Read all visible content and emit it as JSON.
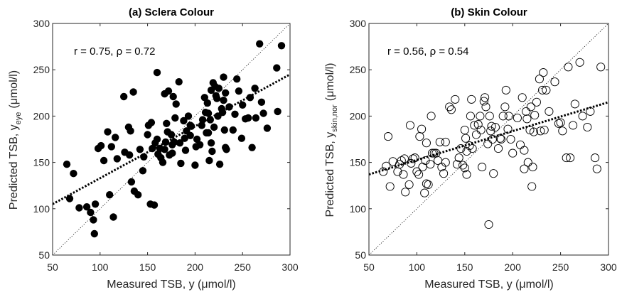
{
  "chart_data": [
    {
      "type": "scatter",
      "panel_id": "a",
      "title": "(a) Sclera Colour",
      "xlabel": "Measured TSB, y (μmol/l)",
      "ylabel_main": "Predicted TSB, y",
      "ylabel_sub": "eye",
      "ylabel_unit": "(μmol/l)",
      "annotation": "r = 0.75, ρ = 0.72",
      "xlim": [
        50,
        300
      ],
      "ylim": [
        50,
        300
      ],
      "xticks": [
        50,
        100,
        150,
        200,
        250,
        300
      ],
      "yticks": [
        50,
        100,
        150,
        200,
        250,
        300
      ],
      "marker": "filled",
      "fit_line": {
        "x": [
          50,
          300
        ],
        "y": [
          105,
          245
        ]
      },
      "identity_line": true,
      "points": [
        [
          65,
          148
        ],
        [
          68,
          111
        ],
        [
          72,
          138
        ],
        [
          78,
          101
        ],
        [
          86,
          102
        ],
        [
          90,
          96
        ],
        [
          93,
          88
        ],
        [
          94,
          73
        ],
        [
          95,
          105
        ],
        [
          98,
          165
        ],
        [
          101,
          168
        ],
        [
          104,
          152
        ],
        [
          108,
          183
        ],
        [
          110,
          115
        ],
        [
          112,
          167
        ],
        [
          114,
          91
        ],
        [
          116,
          177
        ],
        [
          118,
          154
        ],
        [
          125,
          221
        ],
        [
          126,
          161
        ],
        [
          130,
          188
        ],
        [
          131,
          158
        ],
        [
          132,
          184
        ],
        [
          133,
          129
        ],
        [
          135,
          226
        ],
        [
          136,
          119
        ],
        [
          140,
          115
        ],
        [
          142,
          164
        ],
        [
          145,
          141
        ],
        [
          146,
          156
        ],
        [
          150,
          180
        ],
        [
          151,
          190
        ],
        [
          153,
          105
        ],
        [
          154,
          193
        ],
        [
          155,
          165
        ],
        [
          157,
          104
        ],
        [
          158,
          171
        ],
        [
          160,
          175
        ],
        [
          160,
          247
        ],
        [
          161,
          159
        ],
        [
          163,
          165
        ],
        [
          164,
          155
        ],
        [
          166,
          150
        ],
        [
          168,
          224
        ],
        [
          168,
          164
        ],
        [
          169,
          172
        ],
        [
          170,
          192
        ],
        [
          171,
          183
        ],
        [
          172,
          227
        ],
        [
          173,
          158
        ],
        [
          175,
          180
        ],
        [
          176,
          169
        ],
        [
          176,
          160
        ],
        [
          177,
          221
        ],
        [
          178,
          172
        ],
        [
          179,
          198
        ],
        [
          180,
          213
        ],
        [
          183,
          237
        ],
        [
          184,
          171
        ],
        [
          185,
          149
        ],
        [
          188,
          195
        ],
        [
          189,
          176
        ],
        [
          190,
          163
        ],
        [
          191,
          184
        ],
        [
          193,
          200
        ],
        [
          195,
          190
        ],
        [
          195,
          179
        ],
        [
          196,
          189
        ],
        [
          200,
          147
        ],
        [
          201,
          167
        ],
        [
          202,
          175
        ],
        [
          205,
          169
        ],
        [
          207,
          190
        ],
        [
          208,
          196
        ],
        [
          210,
          220
        ],
        [
          211,
          204
        ],
        [
          212,
          182
        ],
        [
          213,
          214
        ],
        [
          214,
          203
        ],
        [
          214,
          182
        ],
        [
          215,
          152
        ],
        [
          216,
          196
        ],
        [
          217,
          228
        ],
        [
          217,
          171
        ],
        [
          218,
          162
        ],
        [
          219,
          236
        ],
        [
          220,
          188
        ],
        [
          221,
          232
        ],
        [
          222,
          222
        ],
        [
          223,
          219
        ],
        [
          224,
          200
        ],
        [
          225,
          230
        ],
        [
          226,
          148
        ],
        [
          228,
          208
        ],
        [
          229,
          204
        ],
        [
          230,
          217
        ],
        [
          230,
          242
        ],
        [
          231,
          185
        ],
        [
          232,
          225
        ],
        [
          232,
          166
        ],
        [
          233,
          164
        ],
        [
          236,
          210
        ],
        [
          240,
          185
        ],
        [
          242,
          202
        ],
        [
          244,
          240
        ],
        [
          246,
          227
        ],
        [
          249,
          176
        ],
        [
          250,
          212
        ],
        [
          253,
          197
        ],
        [
          256,
          198
        ],
        [
          258,
          220
        ],
        [
          260,
          166
        ],
        [
          263,
          230
        ],
        [
          264,
          198
        ],
        [
          268,
          278
        ],
        [
          270,
          215
        ],
        [
          272,
          203
        ],
        [
          276,
          187
        ],
        [
          286,
          252
        ],
        [
          287,
          205
        ],
        [
          291,
          276
        ]
      ]
    },
    {
      "type": "scatter",
      "panel_id": "b",
      "title": "(b) Skin Colour",
      "xlabel": "Measured TSB, y (μmol/l)",
      "ylabel_main": "Predicted TSB, y",
      "ylabel_sub": "skin,nor",
      "ylabel_unit": "(μmol/l)",
      "annotation": "r = 0.56, ρ = 0.54",
      "xlim": [
        50,
        300
      ],
      "ylim": [
        50,
        300
      ],
      "xticks": [
        50,
        100,
        150,
        200,
        250,
        300
      ],
      "yticks": [
        50,
        100,
        150,
        200,
        250,
        300
      ],
      "marker": "open",
      "fit_line": {
        "x": [
          50,
          300
        ],
        "y": [
          137,
          215
        ]
      },
      "identity_line": true,
      "points": [
        [
          65,
          140
        ],
        [
          68,
          146
        ],
        [
          70,
          178
        ],
        [
          72,
          124
        ],
        [
          75,
          151
        ],
        [
          80,
          140
        ],
        [
          82,
          148
        ],
        [
          84,
          152
        ],
        [
          86,
          137
        ],
        [
          87,
          154
        ],
        [
          88,
          118
        ],
        [
          92,
          126
        ],
        [
          93,
          190
        ],
        [
          94,
          149
        ],
        [
          96,
          154
        ],
        [
          98,
          155
        ],
        [
          100,
          140
        ],
        [
          102,
          137
        ],
        [
          103,
          178
        ],
        [
          105,
          186
        ],
        [
          106,
          145
        ],
        [
          108,
          117
        ],
        [
          109,
          152
        ],
        [
          110,
          127
        ],
        [
          110,
          171
        ],
        [
          112,
          126
        ],
        [
          114,
          148
        ],
        [
          115,
          200
        ],
        [
          116,
          160
        ],
        [
          118,
          160
        ],
        [
          120,
          160
        ],
        [
          122,
          152
        ],
        [
          124,
          172
        ],
        [
          126,
          145
        ],
        [
          128,
          138
        ],
        [
          130,
          172
        ],
        [
          130,
          150
        ],
        [
          134,
          210
        ],
        [
          136,
          207
        ],
        [
          140,
          218
        ],
        [
          142,
          148
        ],
        [
          144,
          155
        ],
        [
          146,
          165
        ],
        [
          148,
          147
        ],
        [
          150,
          144
        ],
        [
          150,
          185
        ],
        [
          151,
          176
        ],
        [
          152,
          137
        ],
        [
          152,
          162
        ],
        [
          155,
          168
        ],
        [
          156,
          200
        ],
        [
          157,
          218
        ],
        [
          158,
          165
        ],
        [
          160,
          190
        ],
        [
          162,
          180
        ],
        [
          164,
          191
        ],
        [
          166,
          200
        ],
        [
          167,
          185
        ],
        [
          168,
          145
        ],
        [
          170,
          216
        ],
        [
          171,
          220
        ],
        [
          172,
          210
        ],
        [
          174,
          170
        ],
        [
          175,
          83
        ],
        [
          176,
          200
        ],
        [
          177,
          184
        ],
        [
          178,
          189
        ],
        [
          179,
          175
        ],
        [
          180,
          138
        ],
        [
          182,
          188
        ],
        [
          185,
          165
        ],
        [
          187,
          176
        ],
        [
          188,
          175
        ],
        [
          190,
          200
        ],
        [
          192,
          210
        ],
        [
          193,
          228
        ],
        [
          195,
          186
        ],
        [
          196,
          200
        ],
        [
          198,
          175
        ],
        [
          200,
          160
        ],
        [
          205,
          198
        ],
        [
          208,
          169
        ],
        [
          210,
          220
        ],
        [
          212,
          143
        ],
        [
          212,
          163
        ],
        [
          214,
          205
        ],
        [
          215,
          197
        ],
        [
          216,
          150
        ],
        [
          218,
          185
        ],
        [
          219,
          210
        ],
        [
          220,
          124
        ],
        [
          221,
          145
        ],
        [
          222,
          183
        ],
        [
          223,
          201
        ],
        [
          225,
          215
        ],
        [
          228,
          240
        ],
        [
          229,
          184
        ],
        [
          231,
          228
        ],
        [
          232,
          247
        ],
        [
          233,
          185
        ],
        [
          235,
          228
        ],
        [
          238,
          205
        ],
        [
          244,
          237
        ],
        [
          248,
          192
        ],
        [
          250,
          193
        ],
        [
          252,
          184
        ],
        [
          256,
          155
        ],
        [
          258,
          253
        ],
        [
          260,
          155
        ],
        [
          263,
          190
        ],
        [
          265,
          213
        ],
        [
          270,
          258
        ],
        [
          273,
          200
        ],
        [
          278,
          188
        ],
        [
          281,
          205
        ],
        [
          286,
          155
        ],
        [
          288,
          143
        ],
        [
          292,
          253
        ]
      ]
    }
  ]
}
